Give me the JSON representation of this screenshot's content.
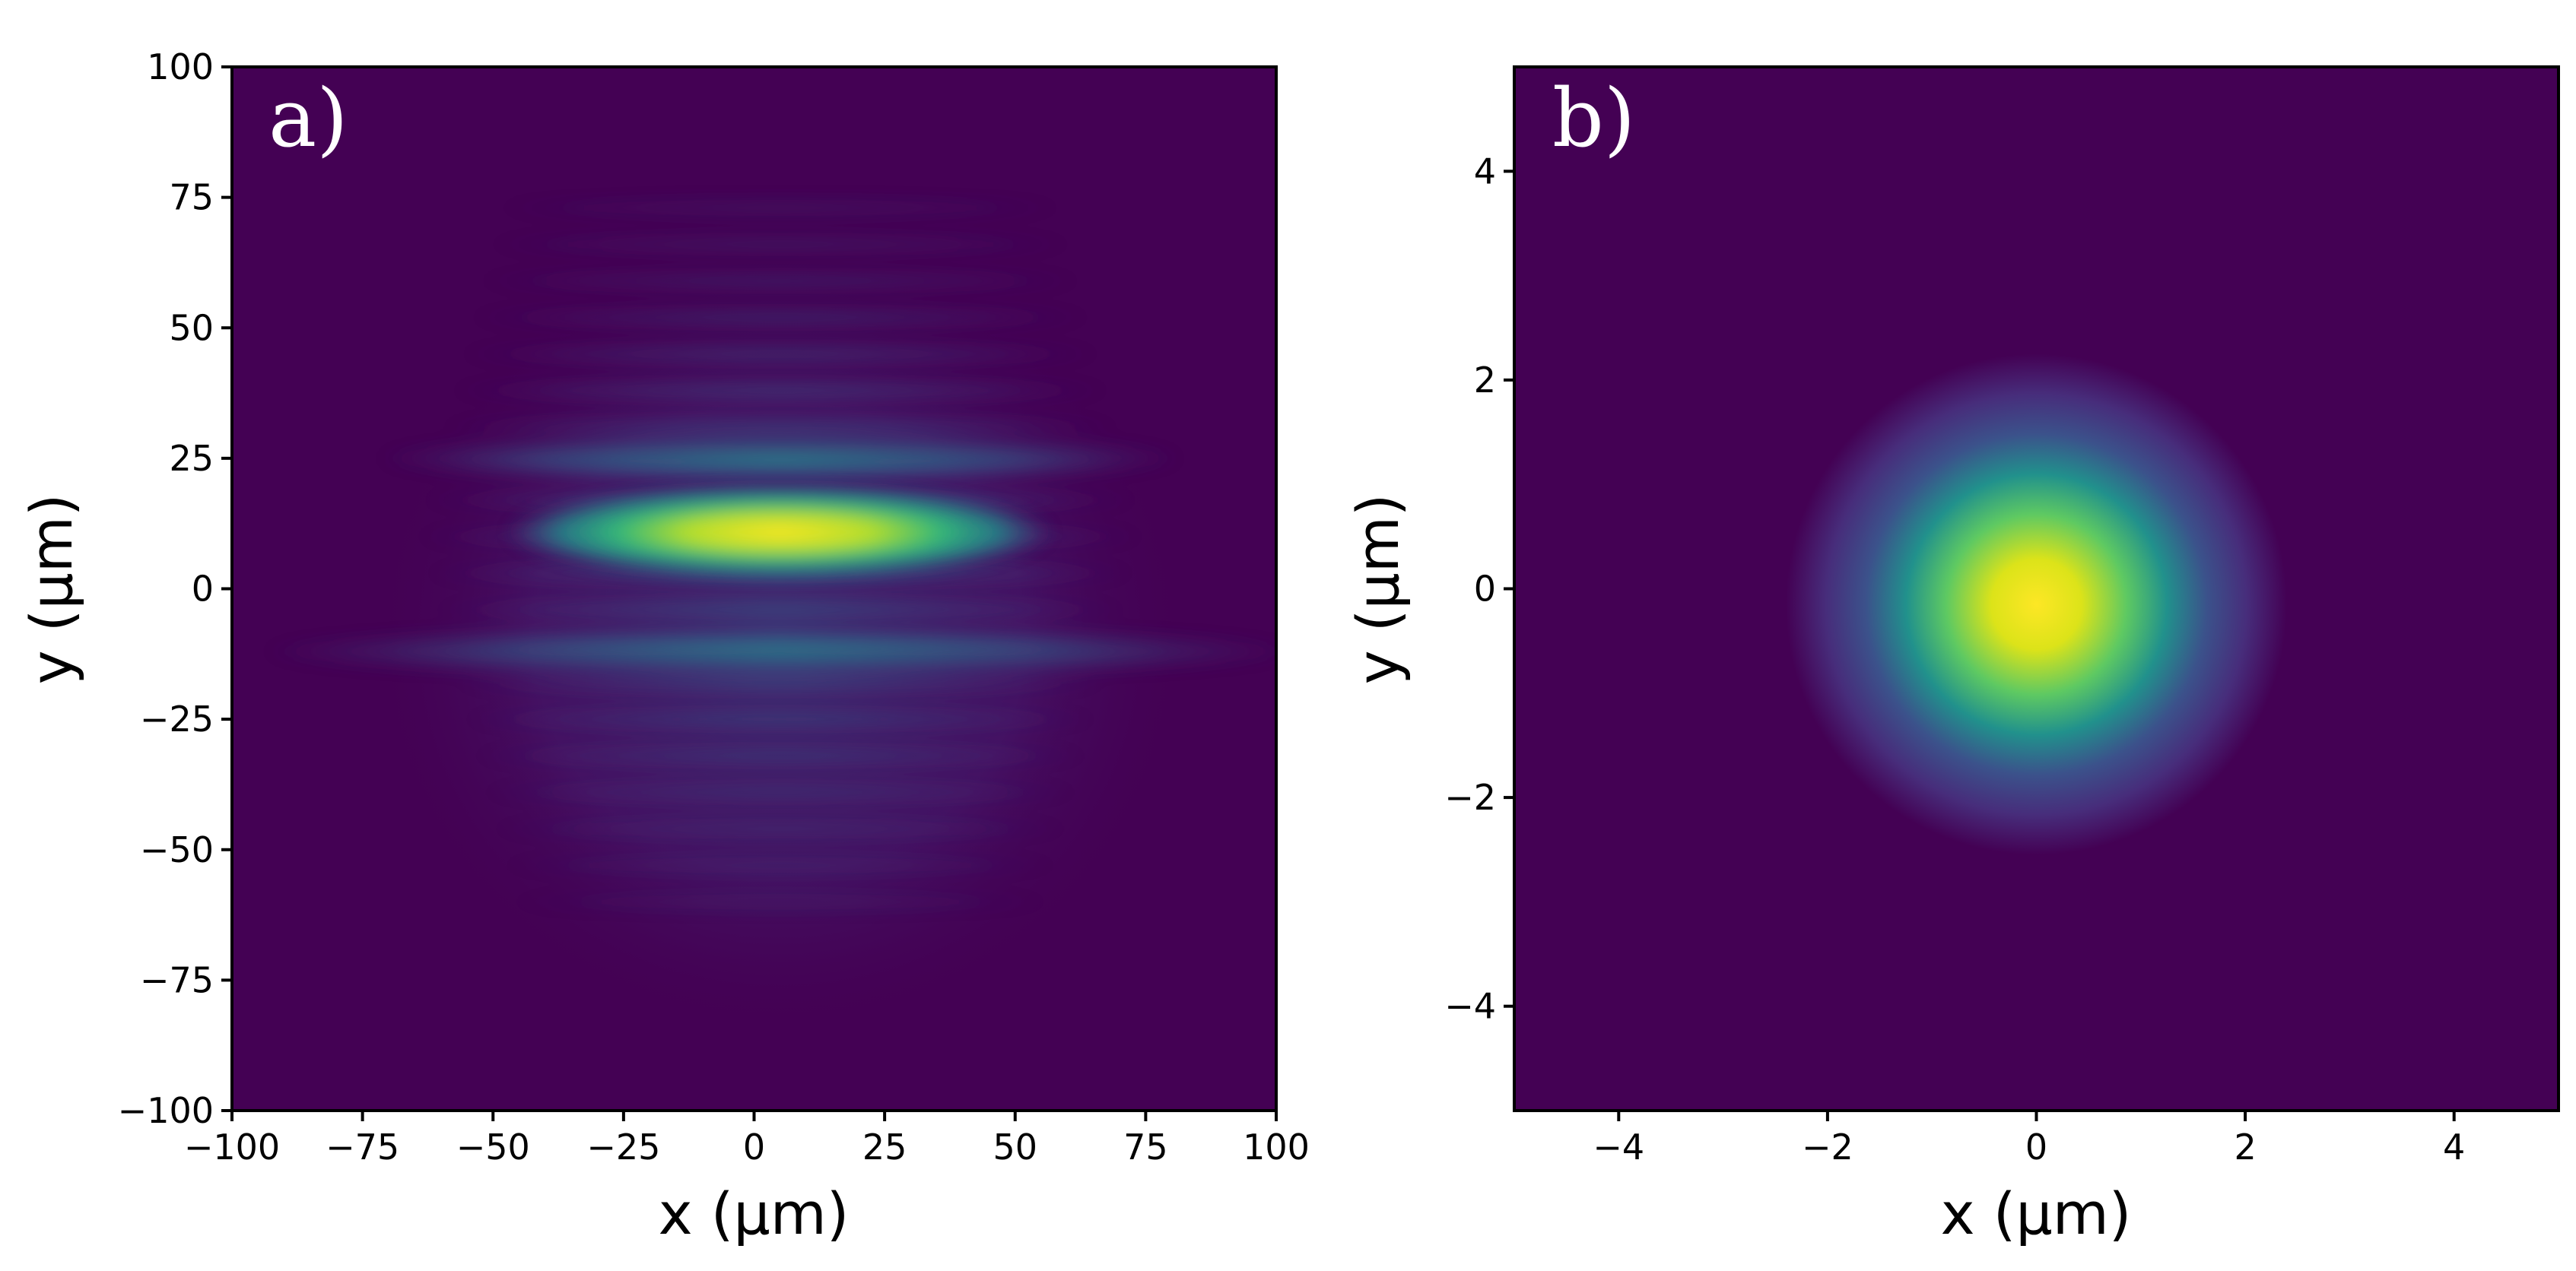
{
  "chart_data": [
    {
      "type": "heatmap",
      "panel_label": "a)",
      "title": "",
      "xlabel": "x (µm)",
      "ylabel": "y (µm)",
      "xlim": [
        -100,
        100
      ],
      "ylim": [
        -100,
        100
      ],
      "xticks": [
        -100,
        -75,
        -50,
        -25,
        0,
        25,
        50,
        75,
        100
      ],
      "yticks": [
        -100,
        -75,
        -50,
        -25,
        0,
        25,
        50,
        75,
        100
      ],
      "xtick_labels": [
        "−100",
        "−75",
        "−50",
        "−25",
        "0",
        "25",
        "50",
        "75",
        "100"
      ],
      "ytick_labels": [
        "−100",
        "−75",
        "−50",
        "−25",
        "0",
        "25",
        "50",
        "75",
        "100"
      ],
      "colormap": "viridis",
      "grid": false,
      "features": [
        {
          "description": "brightest central fringe",
          "x_center": 5,
          "y_center": 11,
          "x_half_width": 30,
          "relative_intensity": 1.0
        },
        {
          "description": "second fringe below",
          "x_center": 5,
          "y_center": -12,
          "x_half_width": 45,
          "relative_intensity": 0.45
        },
        {
          "description": "fringe above",
          "x_center": 5,
          "y_center": 25,
          "x_half_width": 35,
          "relative_intensity": 0.5
        },
        {
          "description": "outer fringes",
          "y_range": [
            -60,
            75
          ],
          "fringe_period": 7,
          "relative_intensity": 0.25
        }
      ]
    },
    {
      "type": "heatmap",
      "panel_label": "b)",
      "title": "",
      "xlabel": "x (µm)",
      "ylabel": "y (µm)",
      "xlim": [
        -5,
        5
      ],
      "ylim": [
        -5,
        5
      ],
      "xticks": [
        -4,
        -2,
        0,
        2,
        4
      ],
      "yticks": [
        -4,
        -2,
        0,
        2,
        4
      ],
      "xtick_labels": [
        "−4",
        "−2",
        "0",
        "2",
        "4"
      ],
      "ytick_labels": [
        "−4",
        "−2",
        "0",
        "2",
        "4"
      ],
      "colormap": "viridis",
      "grid": false,
      "features": [
        {
          "description": "gaussian spot",
          "x_center": 0,
          "y_center": -0.15,
          "sigma": 0.8,
          "relative_intensity": 1.0
        }
      ]
    }
  ],
  "colors": {
    "viridis_low": "#440154",
    "viridis_mid": "#21918c",
    "viridis_high": "#fde725",
    "axis": "#000000",
    "panel_label": "#ffffff",
    "background": "#ffffff"
  }
}
